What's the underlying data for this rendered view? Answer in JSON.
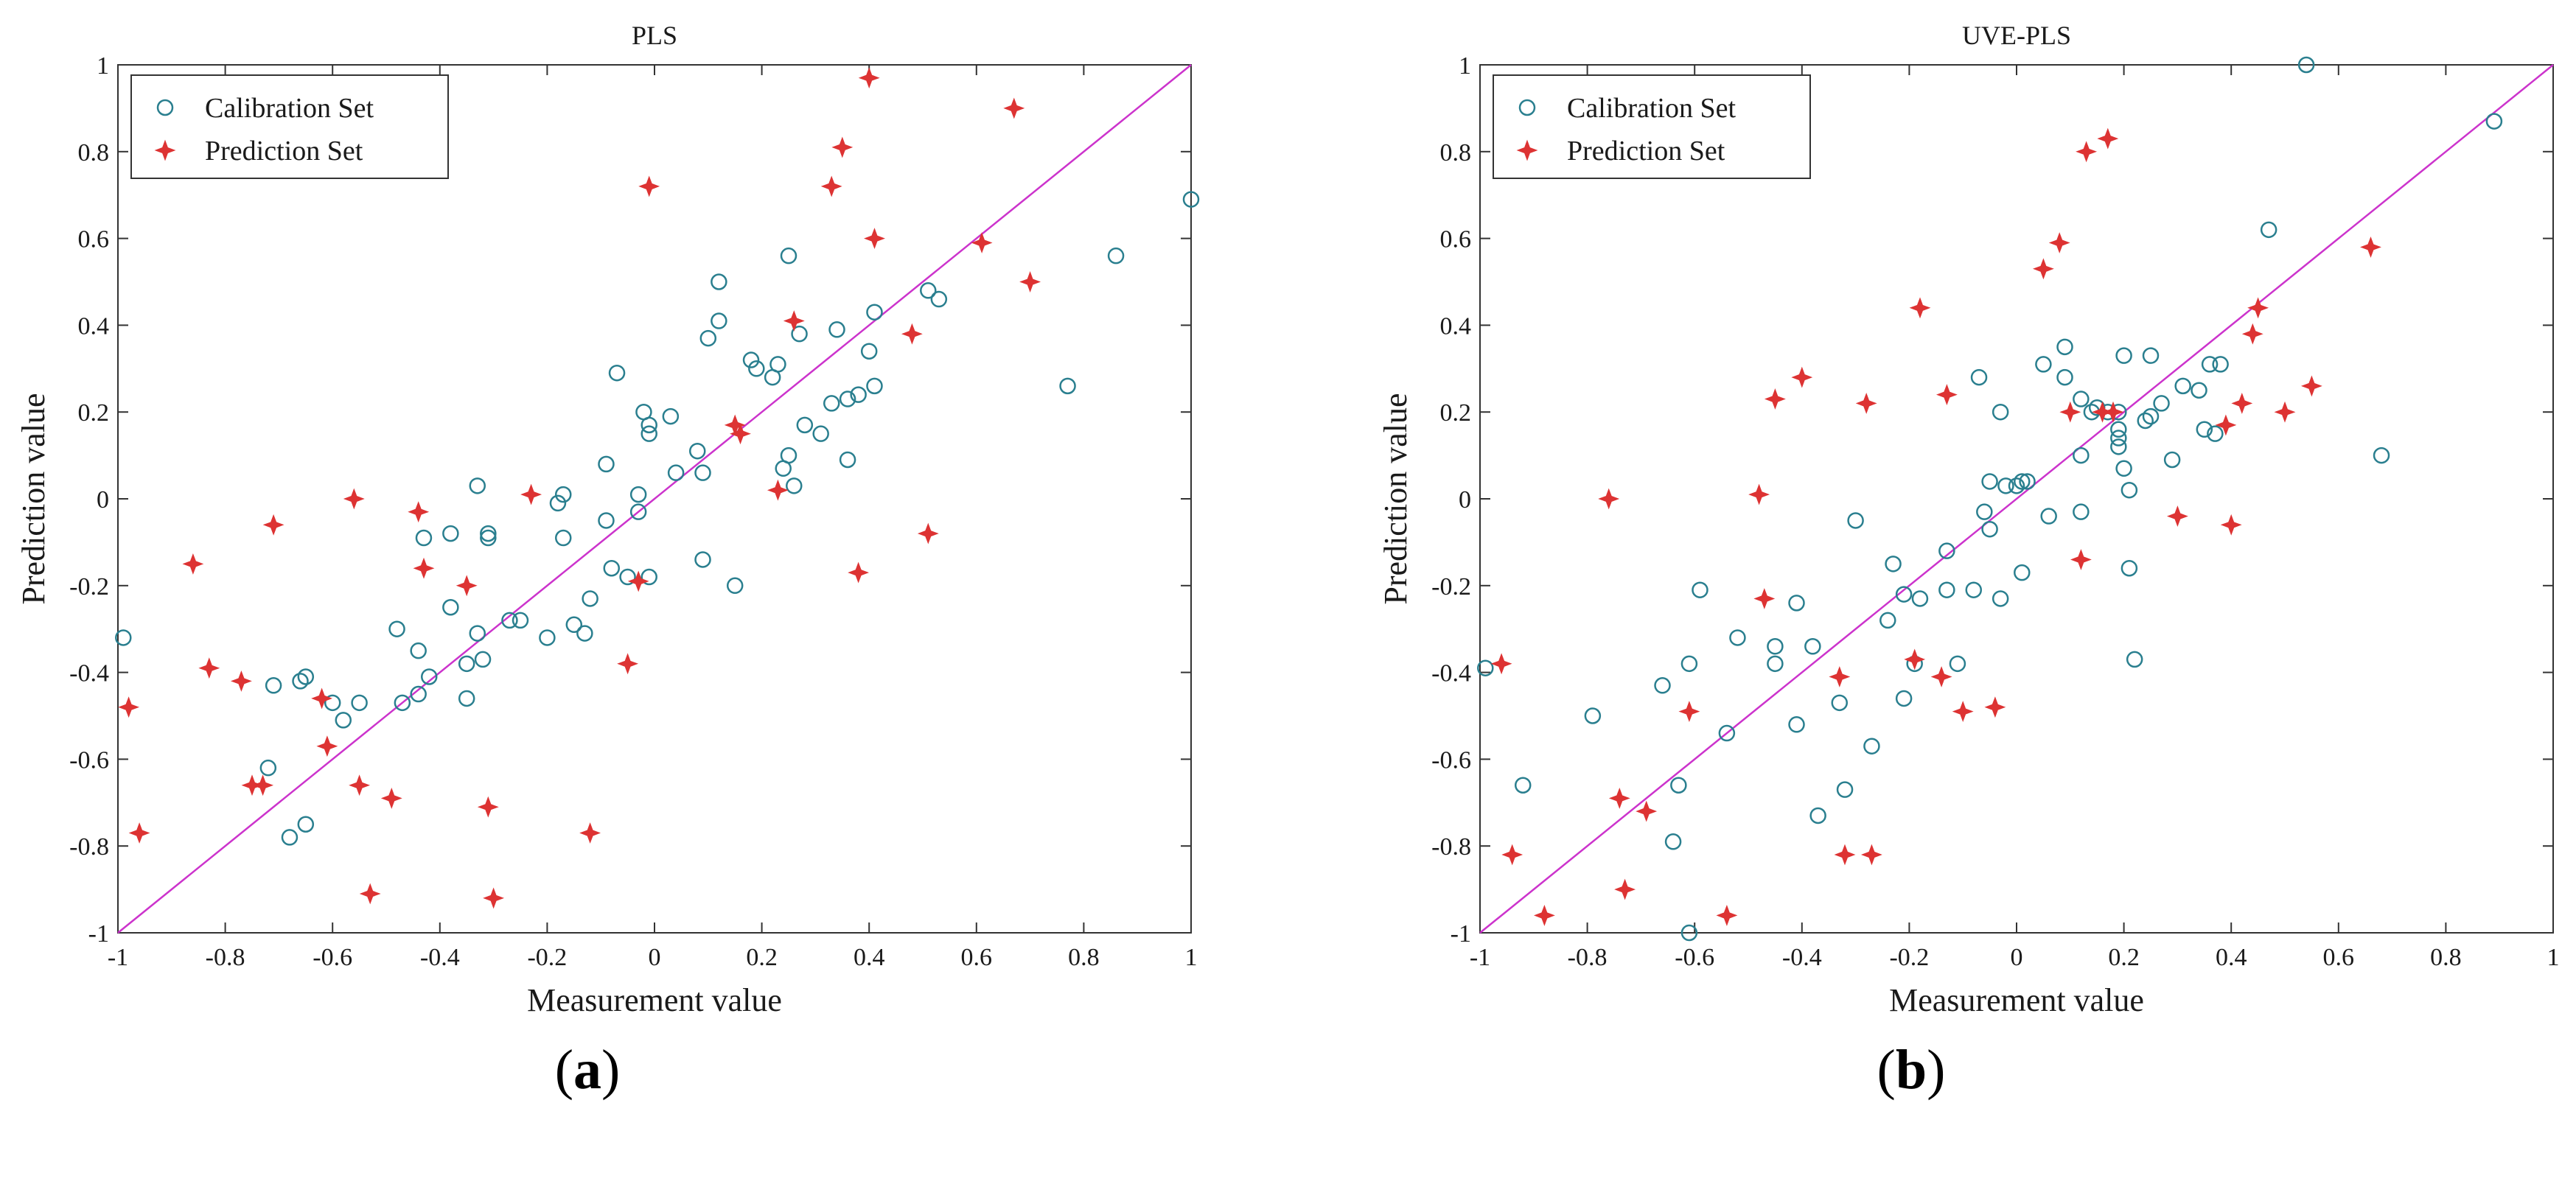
{
  "chart_data": [
    {
      "type": "scatter",
      "title": "PLS",
      "xlabel": "Measurement value",
      "ylabel": "Prediction value",
      "xlim": [
        -1,
        1
      ],
      "ylim": [
        -1,
        1
      ],
      "xticks": [
        "-1",
        "-0.8",
        "-0.6",
        "-0.4",
        "-0.2",
        "0",
        "0.2",
        "0.4",
        "0.6",
        "0.8",
        "1"
      ],
      "yticks": [
        "-1",
        "-0.8",
        "-0.6",
        "-0.4",
        "-0.2",
        "0",
        "0.2",
        "0.4",
        "0.6",
        "0.8",
        "1"
      ],
      "legend": {
        "location": "top-left",
        "entries": [
          "Calibration Set",
          "Prediction Set"
        ]
      },
      "reference_line": {
        "label": "y = x",
        "color": "#cc33cc"
      },
      "caption": {
        "open": "(",
        "letter": "a",
        "close": ")"
      },
      "series": [
        {
          "name": "Calibration Set",
          "marker": "circle",
          "color": "#2a7f8f",
          "points": [
            [
              -0.99,
              -0.32
            ],
            [
              -0.71,
              -0.43
            ],
            [
              -0.72,
              -0.62
            ],
            [
              -0.68,
              -0.78
            ],
            [
              -0.65,
              -0.75
            ],
            [
              -0.66,
              -0.42
            ],
            [
              -0.65,
              -0.41
            ],
            [
              -0.6,
              -0.47
            ],
            [
              -0.58,
              -0.51
            ],
            [
              -0.55,
              -0.47
            ],
            [
              -0.47,
              -0.47
            ],
            [
              -0.48,
              -0.3
            ],
            [
              -0.44,
              -0.45
            ],
            [
              -0.44,
              -0.35
            ],
            [
              -0.43,
              -0.09
            ],
            [
              -0.42,
              -0.41
            ],
            [
              -0.38,
              -0.08
            ],
            [
              -0.38,
              -0.25
            ],
            [
              -0.35,
              -0.38
            ],
            [
              -0.35,
              -0.46
            ],
            [
              -0.33,
              -0.31
            ],
            [
              -0.33,
              0.03
            ],
            [
              -0.32,
              -0.37
            ],
            [
              -0.31,
              -0.08
            ],
            [
              -0.31,
              -0.09
            ],
            [
              -0.27,
              -0.28
            ],
            [
              -0.25,
              -0.28
            ],
            [
              -0.2,
              -0.32
            ],
            [
              -0.18,
              -0.01
            ],
            [
              -0.17,
              0.01
            ],
            [
              -0.17,
              -0.09
            ],
            [
              -0.15,
              -0.29
            ],
            [
              -0.13,
              -0.31
            ],
            [
              -0.12,
              -0.23
            ],
            [
              -0.09,
              0.08
            ],
            [
              -0.09,
              -0.05
            ],
            [
              -0.08,
              -0.16
            ],
            [
              -0.07,
              0.29
            ],
            [
              -0.05,
              -0.18
            ],
            [
              -0.03,
              0.01
            ],
            [
              -0.03,
              -0.03
            ],
            [
              -0.02,
              0.2
            ],
            [
              -0.01,
              0.17
            ],
            [
              -0.01,
              -0.18
            ],
            [
              -0.01,
              0.15
            ],
            [
              0.03,
              0.19
            ],
            [
              0.04,
              0.06
            ],
            [
              0.08,
              0.11
            ],
            [
              0.09,
              0.06
            ],
            [
              0.09,
              -0.14
            ],
            [
              0.1,
              0.37
            ],
            [
              0.12,
              0.5
            ],
            [
              0.12,
              0.41
            ],
            [
              0.15,
              -0.2
            ],
            [
              0.18,
              0.32
            ],
            [
              0.19,
              0.3
            ],
            [
              0.22,
              0.28
            ],
            [
              0.23,
              0.31
            ],
            [
              0.24,
              0.07
            ],
            [
              0.25,
              0.1
            ],
            [
              0.25,
              0.56
            ],
            [
              0.26,
              0.03
            ],
            [
              0.27,
              0.38
            ],
            [
              0.28,
              0.17
            ],
            [
              0.31,
              0.15
            ],
            [
              0.33,
              0.22
            ],
            [
              0.34,
              0.39
            ],
            [
              0.36,
              0.09
            ],
            [
              0.36,
              0.23
            ],
            [
              0.38,
              0.24
            ],
            [
              0.4,
              0.34
            ],
            [
              0.41,
              0.43
            ],
            [
              0.41,
              0.26
            ],
            [
              0.51,
              0.48
            ],
            [
              0.53,
              0.46
            ],
            [
              0.77,
              0.26
            ],
            [
              0.86,
              0.56
            ],
            [
              1.0,
              0.69
            ]
          ]
        },
        {
          "name": "Prediction Set",
          "marker": "star",
          "color": "#dd3333",
          "points": [
            [
              -0.98,
              -0.48
            ],
            [
              -0.96,
              -0.77
            ],
            [
              -0.86,
              -0.15
            ],
            [
              -0.83,
              -0.39
            ],
            [
              -0.77,
              -0.42
            ],
            [
              -0.75,
              -0.66
            ],
            [
              -0.73,
              -0.66
            ],
            [
              -0.71,
              -0.06
            ],
            [
              -0.62,
              -0.46
            ],
            [
              -0.61,
              -0.57
            ],
            [
              -0.56,
              0.0
            ],
            [
              -0.55,
              -0.66
            ],
            [
              -0.53,
              -0.91
            ],
            [
              -0.49,
              -0.69
            ],
            [
              -0.44,
              -0.03
            ],
            [
              -0.43,
              -0.16
            ],
            [
              -0.35,
              -0.2
            ],
            [
              -0.31,
              -0.71
            ],
            [
              -0.3,
              -0.92
            ],
            [
              -0.23,
              0.01
            ],
            [
              -0.12,
              -0.77
            ],
            [
              -0.05,
              -0.38
            ],
            [
              -0.03,
              -0.19
            ],
            [
              -0.01,
              0.72
            ],
            [
              0.15,
              0.17
            ],
            [
              0.16,
              0.15
            ],
            [
              0.23,
              0.02
            ],
            [
              0.26,
              0.41
            ],
            [
              0.33,
              0.72
            ],
            [
              0.35,
              0.81
            ],
            [
              0.38,
              -0.17
            ],
            [
              0.4,
              0.97
            ],
            [
              0.41,
              0.6
            ],
            [
              0.48,
              0.38
            ],
            [
              0.51,
              -0.08
            ],
            [
              0.61,
              0.59
            ],
            [
              0.67,
              0.9
            ],
            [
              0.7,
              0.5
            ]
          ]
        }
      ]
    },
    {
      "type": "scatter",
      "title": "UVE-PLS",
      "xlabel": "Measurement value",
      "ylabel": "Prediction value",
      "xlim": [
        -1,
        1
      ],
      "ylim": [
        -1,
        1
      ],
      "xticks": [
        "-1",
        "-0.8",
        "-0.6",
        "-0.4",
        "-0.2",
        "0",
        "0.2",
        "0.4",
        "0.6",
        "0.8",
        "1"
      ],
      "yticks": [
        "-1",
        "-0.8",
        "-0.6",
        "-0.4",
        "-0.2",
        "0",
        "0.2",
        "0.4",
        "0.6",
        "0.8",
        "1"
      ],
      "legend": {
        "location": "top-left",
        "entries": [
          "Calibration Set",
          "Prediction Set"
        ]
      },
      "reference_line": {
        "label": "y = x",
        "color": "#cc33cc"
      },
      "caption": {
        "open": "(",
        "letter": "b",
        "close": ")"
      },
      "series": [
        {
          "name": "Calibration Set",
          "marker": "circle",
          "color": "#2a7f8f",
          "points": [
            [
              -0.99,
              -0.39
            ],
            [
              -0.92,
              -0.66
            ],
            [
              -0.79,
              -0.5
            ],
            [
              -0.66,
              -0.43
            ],
            [
              -0.64,
              -0.79
            ],
            [
              -0.63,
              -0.66
            ],
            [
              -0.61,
              -0.38
            ],
            [
              -0.61,
              -1.0
            ],
            [
              -0.59,
              -0.21
            ],
            [
              -0.54,
              -0.54
            ],
            [
              -0.52,
              -0.32
            ],
            [
              -0.45,
              -0.38
            ],
            [
              -0.45,
              -0.34
            ],
            [
              -0.41,
              -0.52
            ],
            [
              -0.41,
              -0.24
            ],
            [
              -0.38,
              -0.34
            ],
            [
              -0.37,
              -0.73
            ],
            [
              -0.33,
              -0.47
            ],
            [
              -0.32,
              -0.67
            ],
            [
              -0.3,
              -0.05
            ],
            [
              -0.27,
              -0.57
            ],
            [
              -0.24,
              -0.28
            ],
            [
              -0.23,
              -0.15
            ],
            [
              -0.21,
              -0.46
            ],
            [
              -0.21,
              -0.22
            ],
            [
              -0.19,
              -0.38
            ],
            [
              -0.18,
              -0.23
            ],
            [
              -0.13,
              -0.21
            ],
            [
              -0.13,
              -0.12
            ],
            [
              -0.11,
              -0.38
            ],
            [
              -0.08,
              -0.21
            ],
            [
              -0.07,
              0.28
            ],
            [
              -0.06,
              -0.03
            ],
            [
              -0.05,
              -0.07
            ],
            [
              -0.05,
              0.04
            ],
            [
              -0.03,
              0.2
            ],
            [
              -0.03,
              -0.23
            ],
            [
              -0.02,
              0.03
            ],
            [
              0.0,
              0.03
            ],
            [
              0.01,
              0.04
            ],
            [
              0.01,
              -0.17
            ],
            [
              0.02,
              0.04
            ],
            [
              0.05,
              0.31
            ],
            [
              0.06,
              -0.04
            ],
            [
              0.09,
              0.35
            ],
            [
              0.09,
              0.28
            ],
            [
              0.12,
              0.23
            ],
            [
              0.12,
              0.1
            ],
            [
              0.12,
              -0.03
            ],
            [
              0.14,
              0.2
            ],
            [
              0.15,
              0.21
            ],
            [
              0.17,
              0.2
            ],
            [
              0.19,
              0.2
            ],
            [
              0.19,
              0.16
            ],
            [
              0.19,
              0.14
            ],
            [
              0.19,
              0.12
            ],
            [
              0.2,
              0.33
            ],
            [
              0.2,
              0.07
            ],
            [
              0.21,
              0.02
            ],
            [
              0.21,
              -0.16
            ],
            [
              0.22,
              -0.37
            ],
            [
              0.24,
              0.18
            ],
            [
              0.25,
              0.33
            ],
            [
              0.25,
              0.19
            ],
            [
              0.27,
              0.22
            ],
            [
              0.29,
              0.09
            ],
            [
              0.31,
              0.26
            ],
            [
              0.34,
              0.25
            ],
            [
              0.35,
              0.16
            ],
            [
              0.36,
              0.31
            ],
            [
              0.37,
              0.15
            ],
            [
              0.38,
              0.31
            ],
            [
              0.47,
              0.62
            ],
            [
              0.54,
              1.0
            ],
            [
              0.68,
              0.1
            ],
            [
              0.89,
              0.87
            ]
          ]
        },
        {
          "name": "Prediction Set",
          "marker": "star",
          "color": "#dd3333",
          "points": [
            [
              -0.96,
              -0.38
            ],
            [
              -0.94,
              -0.82
            ],
            [
              -0.88,
              -0.96
            ],
            [
              -0.76,
              0.0
            ],
            [
              -0.74,
              -0.69
            ],
            [
              -0.73,
              -0.9
            ],
            [
              -0.69,
              -0.72
            ],
            [
              -0.61,
              -0.49
            ],
            [
              -0.54,
              -0.96
            ],
            [
              -0.48,
              0.01
            ],
            [
              -0.47,
              -0.23
            ],
            [
              -0.45,
              0.23
            ],
            [
              -0.4,
              0.28
            ],
            [
              -0.33,
              -0.41
            ],
            [
              -0.32,
              -0.82
            ],
            [
              -0.28,
              0.22
            ],
            [
              -0.27,
              -0.82
            ],
            [
              -0.19,
              -0.37
            ],
            [
              -0.18,
              0.44
            ],
            [
              -0.14,
              -0.41
            ],
            [
              -0.13,
              0.24
            ],
            [
              -0.1,
              -0.49
            ],
            [
              -0.04,
              -0.48
            ],
            [
              0.05,
              0.53
            ],
            [
              0.08,
              0.59
            ],
            [
              0.1,
              0.2
            ],
            [
              0.12,
              -0.14
            ],
            [
              0.13,
              0.8
            ],
            [
              0.16,
              0.2
            ],
            [
              0.17,
              0.83
            ],
            [
              0.18,
              0.2
            ],
            [
              0.3,
              -0.04
            ],
            [
              0.39,
              0.17
            ],
            [
              0.4,
              -0.06
            ],
            [
              0.42,
              0.22
            ],
            [
              0.44,
              0.38
            ],
            [
              0.45,
              0.44
            ],
            [
              0.5,
              0.2
            ],
            [
              0.55,
              0.26
            ],
            [
              0.66,
              0.58
            ]
          ]
        }
      ]
    }
  ]
}
